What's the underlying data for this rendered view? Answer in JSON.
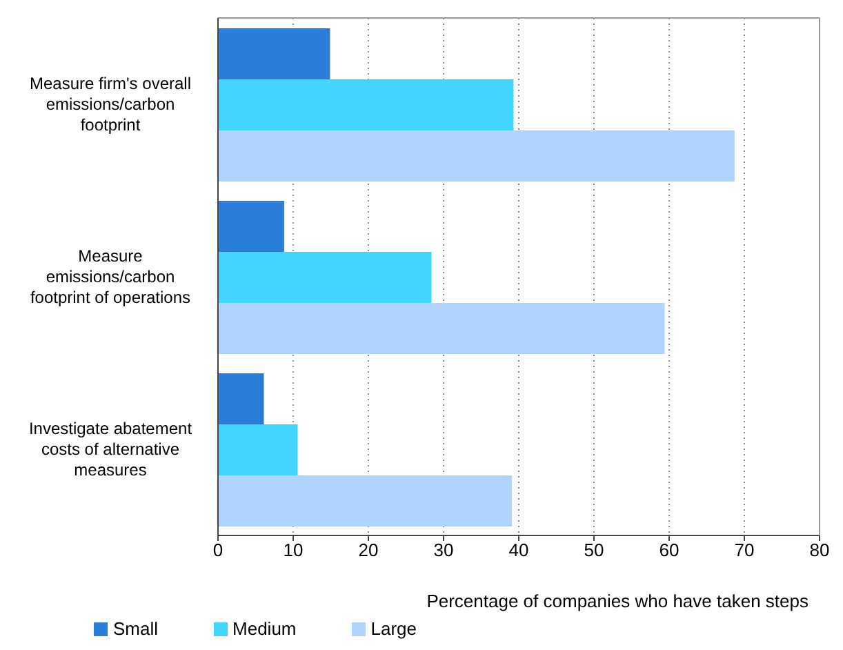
{
  "chart_data": {
    "type": "bar",
    "orientation": "horizontal",
    "categories": [
      "Measure firm's overall emissions/carbon footprint",
      "Measure emissions/carbon footprint of operations",
      "Investigate abatement costs of alternative measures"
    ],
    "series": [
      {
        "name": "Small",
        "color": "#2a7dd8",
        "values": [
          14.9,
          8.8,
          6.1
        ]
      },
      {
        "name": "Medium",
        "color": "#42d6fe",
        "values": [
          39.3,
          28.4,
          10.6
        ]
      },
      {
        "name": "Large",
        "color": "#afd4fd",
        "values": [
          68.7,
          59.4,
          39.1
        ]
      }
    ],
    "xlabel": "Percentage of companies who have taken steps",
    "xlim": [
      0,
      80
    ],
    "xticks": [
      0,
      10,
      20,
      30,
      40,
      50,
      60,
      70,
      80
    ],
    "grid": "x",
    "legend": "bottom left"
  }
}
